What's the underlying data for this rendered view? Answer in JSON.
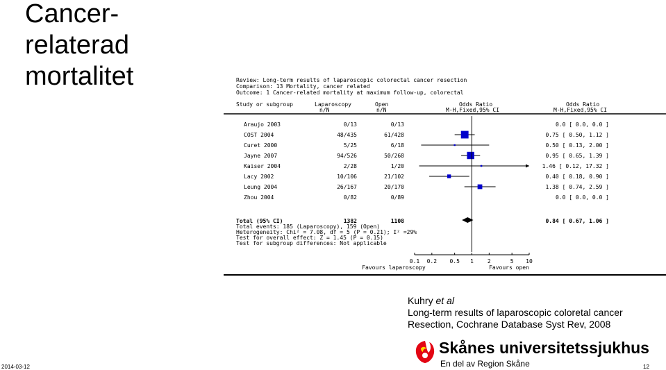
{
  "slide": {
    "title_lines": [
      "Cancer-",
      "relaterad",
      "mortalitet"
    ],
    "date": "2014-03-12",
    "page_number": "12"
  },
  "citation": {
    "author": "Kuhry",
    "et_al": "et al",
    "line2": "Long-term results of laparoscopic coloretal cancer",
    "line3": "Resection, Cochrane Database Syst Rev, 2008"
  },
  "logo": {
    "name": "Skånes universitetssjukhus",
    "subtitle": "En del av Region Skåne"
  },
  "chart_data": {
    "type": "forest",
    "header": {
      "review": "Review: Long-term results of laparoscopic colorectal cancer resection",
      "comparison": "Comparison: 13 Mortality, cancer related",
      "outcome": "Outcome: 1 Cancer-related mortality at maximum follow-up, colorectal"
    },
    "columns": {
      "study": "Study or subgroup",
      "lap": [
        "Laparoscopy",
        "n/N"
      ],
      "open": [
        "Open",
        "n/N"
      ],
      "or_plot": [
        "Odds Ratio",
        "M-H,Fixed,95% CI"
      ],
      "or_text": [
        "Odds Ratio",
        "M-H,Fixed,95% CI"
      ]
    },
    "studies": [
      {
        "name": "Araujo 2003",
        "lap": "0/13",
        "open": "0/13",
        "or": null,
        "lo": null,
        "hi": null,
        "or_text": "0.0 [ 0.0, 0.0 ]"
      },
      {
        "name": "COST 2004",
        "lap": "48/435",
        "open": "61/428",
        "or": 0.75,
        "lo": 0.5,
        "hi": 1.12,
        "or_text": "0.75 [ 0.50, 1.12 ]"
      },
      {
        "name": "Curet 2000",
        "lap": "5/25",
        "open": "6/18",
        "or": 0.5,
        "lo": 0.13,
        "hi": 2.0,
        "or_text": "0.50 [ 0.13, 2.00 ]"
      },
      {
        "name": "Jayne 2007",
        "lap": "94/526",
        "open": "50/268",
        "or": 0.95,
        "lo": 0.65,
        "hi": 1.39,
        "or_text": "0.95 [ 0.65, 1.39 ]"
      },
      {
        "name": "Kaiser 2004",
        "lap": "2/28",
        "open": "1/20",
        "or": 1.46,
        "lo": 0.12,
        "hi": 17.32,
        "or_text": "1.46 [ 0.12, 17.32 ]"
      },
      {
        "name": "Lacy 2002",
        "lap": "10/106",
        "open": "21/102",
        "or": 0.4,
        "lo": 0.18,
        "hi": 0.9,
        "or_text": "0.40 [ 0.18, 0.90 ]"
      },
      {
        "name": "Leung 2004",
        "lap": "26/167",
        "open": "20/170",
        "or": 1.38,
        "lo": 0.74,
        "hi": 2.59,
        "or_text": "1.38 [ 0.74, 2.59 ]"
      },
      {
        "name": "Zhou 2004",
        "lap": "0/82",
        "open": "0/89",
        "or": null,
        "lo": null,
        "hi": null,
        "or_text": "0.0 [ 0.0, 0.0 ]"
      }
    ],
    "total": {
      "label": "Total (95% CI)",
      "lap": "1382",
      "open": "1108",
      "or": 0.84,
      "lo": 0.67,
      "hi": 1.06,
      "or_text": "0.84 [ 0.67, 1.06 ]"
    },
    "stats": [
      "Total events: 185 (Laparoscopy), 159 (Open)",
      "Heterogeneity: Chi² = 7.08, df = 5 (P = 0.21); I² =29%",
      "Test for overall effect: Z = 1.45 (P = 0.15)",
      "Test for subgroup differences: Not applicable"
    ],
    "x_scale": "log",
    "xlim": [
      0.1,
      10
    ],
    "ticks": [
      0.1,
      0.2,
      0.5,
      1,
      2,
      5,
      10
    ],
    "tick_labels": [
      "0.1",
      "0.2",
      "0.5",
      "1",
      "2",
      "5",
      "10"
    ],
    "favours_left": "Favours laparoscopy",
    "favours_right": "Favours open",
    "marker_color": "#0000cc"
  }
}
